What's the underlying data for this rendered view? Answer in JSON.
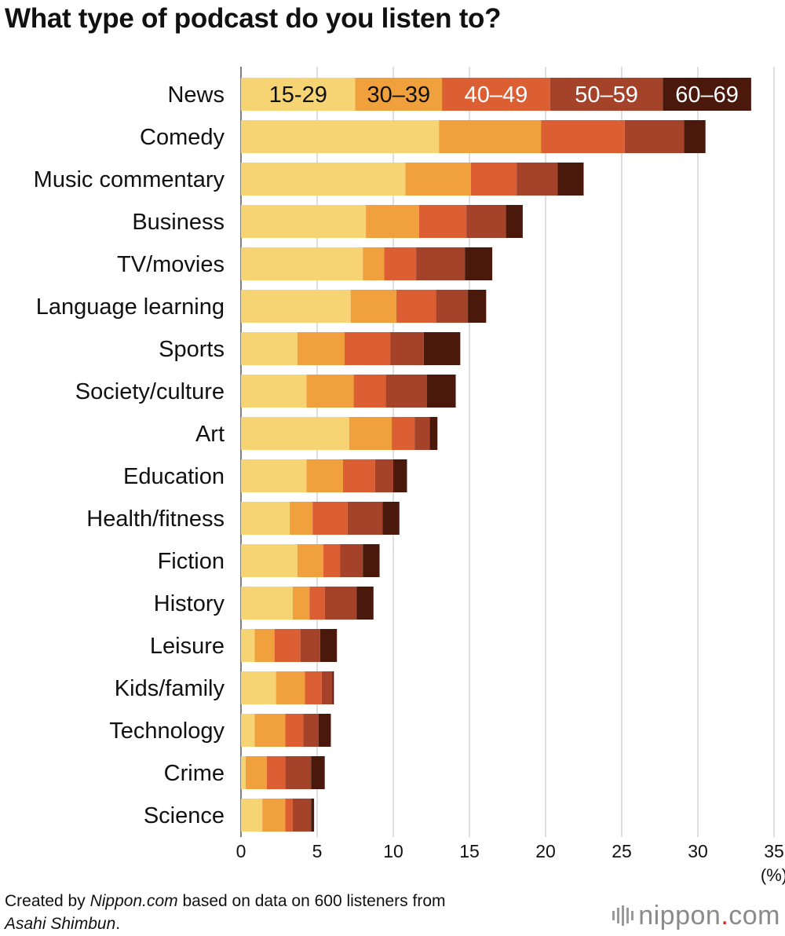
{
  "title": "What type of podcast do you listen to?",
  "chart_data": {
    "type": "bar",
    "orientation": "horizontal",
    "stacked": true,
    "title": "What type of podcast do you listen to?",
    "xlim": [
      0,
      35
    ],
    "xticks": [
      0,
      5,
      10,
      15,
      20,
      25,
      30,
      35
    ],
    "xunit": "(%)",
    "grid": "vertical",
    "legend": "inline labels inside the News bar",
    "categories": [
      "News",
      "Comedy",
      "Music commentary",
      "Business",
      "TV/movies",
      "Language learning",
      "Sports",
      "Society/culture",
      "Art",
      "Education",
      "Health/fitness",
      "Fiction",
      "History",
      "Leisure",
      "Kids/family",
      "Technology",
      "Crime",
      "Science"
    ],
    "series": [
      {
        "name": "15-29",
        "color": "#f7d473",
        "label_color": "#111111",
        "values": [
          7.5,
          13.0,
          10.8,
          8.2,
          8.0,
          7.2,
          3.7,
          4.3,
          7.1,
          4.3,
          3.2,
          3.7,
          3.4,
          0.9,
          2.3,
          0.9,
          0.3,
          1.4
        ]
      },
      {
        "name": "30–39",
        "color": "#f0a13d",
        "label_color": "#111111",
        "values": [
          5.7,
          6.7,
          4.3,
          3.5,
          1.4,
          3.0,
          3.1,
          3.1,
          2.8,
          2.4,
          1.5,
          1.7,
          1.1,
          1.3,
          1.9,
          2.0,
          1.4,
          1.5
        ]
      },
      {
        "name": "40–49",
        "color": "#dc5f33",
        "label_color": "#ffffff",
        "values": [
          7.1,
          5.5,
          3.0,
          3.1,
          2.1,
          2.6,
          3.0,
          2.1,
          1.5,
          2.1,
          2.3,
          1.1,
          1.0,
          1.7,
          1.1,
          1.2,
          1.2,
          0.5
        ]
      },
      {
        "name": "50–59",
        "color": "#a5432a",
        "label_color": "#ffffff",
        "values": [
          7.4,
          3.9,
          2.7,
          2.6,
          3.2,
          2.1,
          2.2,
          2.7,
          1.0,
          1.2,
          2.3,
          1.5,
          2.1,
          1.3,
          0.7,
          1.0,
          1.7,
          1.2
        ]
      },
      {
        "name": "60–69",
        "color": "#4a190c",
        "label_color": "#ffffff",
        "values": [
          5.8,
          1.4,
          1.7,
          1.1,
          1.8,
          1.2,
          2.4,
          1.9,
          0.5,
          0.9,
          1.1,
          1.1,
          1.1,
          1.1,
          0.1,
          0.8,
          0.9,
          0.2
        ]
      }
    ]
  },
  "footer": {
    "prefix": "Created by ",
    "source_site": "Nippon.com",
    "middle": " based on data on 600 listeners from",
    "source_paper": "Asahi Shimbun",
    "suffix": "."
  },
  "logo": {
    "text_main": "nippon",
    "text_dot": ".",
    "text_end": "com"
  }
}
